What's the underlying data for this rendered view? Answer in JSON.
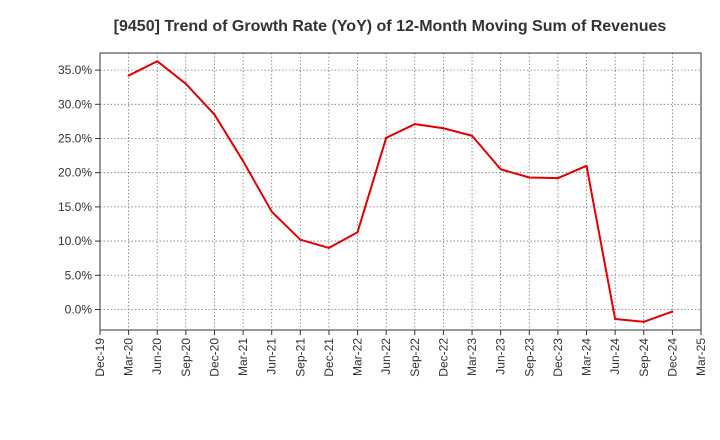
{
  "chart_data": {
    "type": "line",
    "title": "[9450]  Trend of Growth Rate (YoY) of 12-Month Moving Sum of Revenues",
    "xlabel": "",
    "ylabel": "",
    "x": [
      "Dec-19",
      "Mar-20",
      "Jun-20",
      "Sep-20",
      "Dec-20",
      "Mar-21",
      "Jun-21",
      "Sep-21",
      "Dec-21",
      "Mar-22",
      "Jun-22",
      "Sep-22",
      "Dec-22",
      "Mar-23",
      "Jun-23",
      "Sep-23",
      "Dec-23",
      "Mar-24",
      "Jun-24",
      "Sep-24",
      "Dec-24",
      "Mar-25"
    ],
    "y_tick_labels": [
      "0.0%",
      "5.0%",
      "10.0%",
      "15.0%",
      "20.0%",
      "25.0%",
      "30.0%",
      "35.0%"
    ],
    "ylim": [
      -3.0,
      37.5
    ],
    "yticks": [
      0,
      5,
      10,
      15,
      20,
      25,
      30,
      35
    ],
    "grid": true,
    "series": [
      {
        "color": "#e00000",
        "points": [
          {
            "x": "Mar-20",
            "y": 34.2
          },
          {
            "x": "Jun-20",
            "y": 36.3
          },
          {
            "x": "Sep-20",
            "y": 33.0
          },
          {
            "x": "Dec-20",
            "y": 28.5
          },
          {
            "x": "Mar-21",
            "y": 21.7
          },
          {
            "x": "Jun-21",
            "y": 14.3
          },
          {
            "x": "Sep-21",
            "y": 10.2
          },
          {
            "x": "Dec-21",
            "y": 9.0
          },
          {
            "x": "Mar-22",
            "y": 11.3
          },
          {
            "x": "Jun-22",
            "y": 25.1
          },
          {
            "x": "Sep-22",
            "y": 27.1
          },
          {
            "x": "Dec-22",
            "y": 26.5
          },
          {
            "x": "Mar-23",
            "y": 25.4
          },
          {
            "x": "Jun-23",
            "y": 20.5
          },
          {
            "x": "Sep-23",
            "y": 19.3
          },
          {
            "x": "Dec-23",
            "y": 19.2
          },
          {
            "x": "Mar-24",
            "y": 21.0
          },
          {
            "x": "Jun-24",
            "y": -1.4
          },
          {
            "x": "Sep-24",
            "y": -1.8
          },
          {
            "x": "Dec-24",
            "y": -0.3
          }
        ]
      }
    ]
  }
}
